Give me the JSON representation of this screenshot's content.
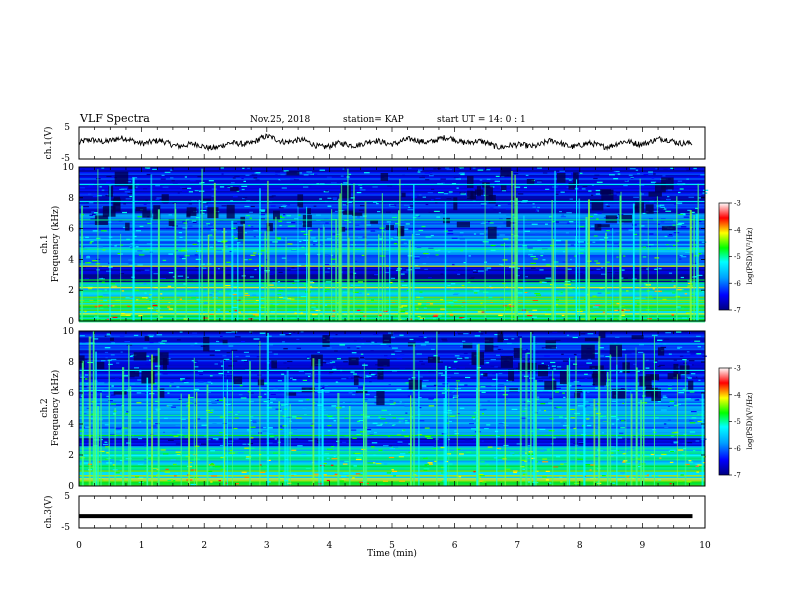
{
  "header": {
    "title": "VLF Spectra",
    "date": "Nov.25, 2018",
    "station": "station= KAP",
    "start": "start UT =  14: 0  : 1"
  },
  "panels": {
    "ch1_voltage": {
      "ylabel": "ch.1(V)",
      "ticks": [
        "5",
        "-5"
      ]
    },
    "ch1_spectrum": {
      "ylabel_ch": "ch.1",
      "ylabel_freq": "Frequency (kHz)"
    },
    "ch2_spectrum": {
      "ylabel_ch": "ch.2",
      "ylabel_freq": "Frequency (kHz)"
    },
    "ch3_voltage": {
      "ylabel": "ch.3(V)",
      "ticks": [
        "5",
        "-5"
      ]
    }
  },
  "colorbar": {
    "label": "log(PSD)(V²/Hz)",
    "ticks": [
      "-3",
      "-4",
      "-5",
      "-6",
      "-7"
    ],
    "colors": [
      "#000080",
      "#0000ff",
      "#00a0ff",
      "#00ffff",
      "#00ff00",
      "#ffff00",
      "#ff0000",
      "#ffffff"
    ]
  },
  "xaxis": {
    "label": "Time (min)"
  },
  "chart_data": [
    {
      "type": "line",
      "panel": "ch1_voltage",
      "ylabel": "ch.1(V)",
      "ylim": [
        -5,
        5
      ],
      "xlim": [
        0,
        10
      ],
      "series": [
        {
          "x": [
            0,
            0.5,
            1,
            1.5,
            2,
            2.5,
            3,
            3.5,
            4,
            4.5,
            5,
            5.5,
            6,
            6.5,
            7,
            7.5,
            8,
            8.5,
            9,
            9.5,
            9.8
          ],
          "values": [
            0,
            1.2,
            0.5,
            -0.2,
            -1.2,
            -0.5,
            1.5,
            0.5,
            -1.0,
            0,
            0.3,
            0.8,
            1.2,
            -0.3,
            -1.2,
            0.2,
            -0.8,
            -0.5,
            0.3,
            1.0,
            -0.5
          ]
        }
      ]
    },
    {
      "type": "heatmap",
      "panel": "ch1_spectrum",
      "ylabel": "Frequency (kHz)",
      "xlim": [
        0,
        10
      ],
      "ylim": [
        0,
        10
      ],
      "xticks": [
        0,
        1,
        2,
        3,
        4,
        5,
        6,
        7,
        8,
        9,
        10
      ],
      "yticks": [
        0,
        2,
        4,
        6,
        8,
        10
      ],
      "zlabel": "log(PSD)(V²/Hz)",
      "zlim": [
        -7,
        -3
      ]
    },
    {
      "type": "heatmap",
      "panel": "ch2_spectrum",
      "ylabel": "Frequency (kHz)",
      "xlim": [
        0,
        10
      ],
      "ylim": [
        0,
        10
      ],
      "xticks": [
        0,
        1,
        2,
        3,
        4,
        5,
        6,
        7,
        8,
        9,
        10
      ],
      "yticks": [
        0,
        2,
        4,
        6,
        8,
        10
      ],
      "zlabel": "log(PSD)(V²/Hz)",
      "zlim": [
        -7,
        -3
      ]
    },
    {
      "type": "line",
      "panel": "ch3_voltage",
      "ylabel": "ch.3(V)",
      "ylim": [
        -5,
        5
      ],
      "xlim": [
        0,
        10
      ],
      "xlabel": "Time (min)",
      "xticks": [
        0,
        1,
        2,
        3,
        4,
        5,
        6,
        7,
        8,
        9,
        10
      ],
      "series": [
        {
          "x": [
            0,
            9.8
          ],
          "values": [
            -1.3,
            -1.3
          ]
        }
      ]
    }
  ]
}
